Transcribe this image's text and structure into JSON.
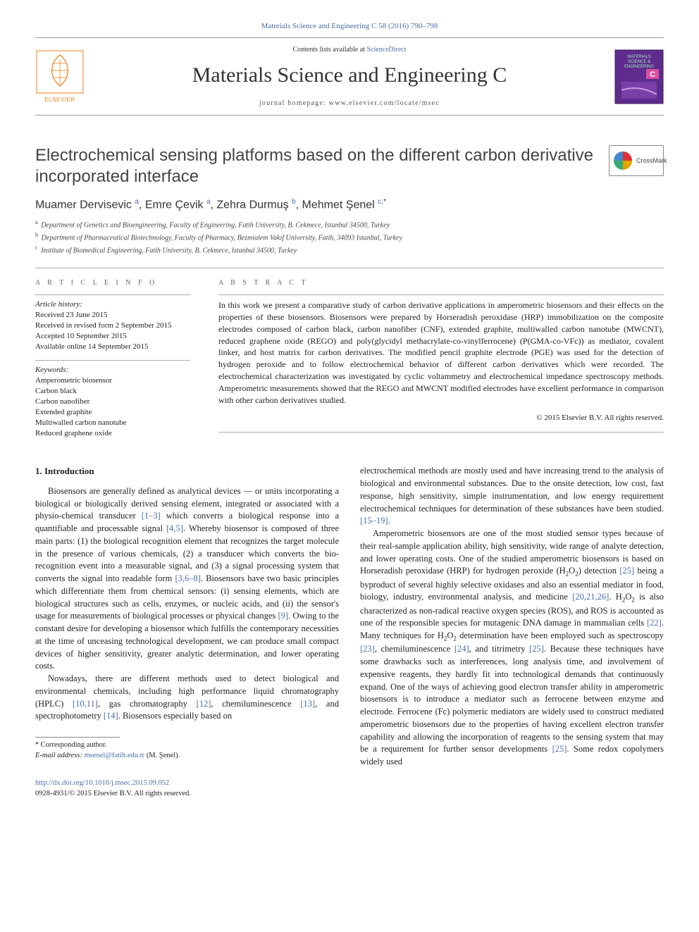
{
  "citation": "Materials Science and Engineering C 58 (2016) 790–798",
  "contents_prefix": "Contents lists available at ",
  "contents_link": "ScienceDirect",
  "journal": "Materials Science and Engineering C",
  "homepage_label": "journal homepage: ",
  "homepage_url": "www.elsevier.com/locate/msec",
  "publisher_name": "ELSEVIER",
  "cover_badge_lines": [
    "MATERIALS",
    "SCIENCE &",
    "ENGINEERING"
  ],
  "cover_badge_letter": "C",
  "title": "Electrochemical sensing platforms based on the different carbon derivative incorporated interface",
  "crossmark_label": "CrossMark",
  "authors_html": "Muamer Dervisevic <sup>a</sup>, Emre Çevik <sup>a</sup>, Zehra Durmuş <sup>b</sup>, Mehmet Şenel <sup>c,</sup><sup class=\"star\">*</sup>",
  "affiliations": [
    {
      "sup": "a",
      "text": "Department of Genetics and Bioengineering, Faculty of Engineering, Fatih University, B. Cekmece, Istanbul 34500, Turkey"
    },
    {
      "sup": "b",
      "text": "Department of Pharmaceutical Biotechnology, Faculty of Pharmacy, Bezmialem Vakıf University, Fatih, 34093 Istanbul, Turkey"
    },
    {
      "sup": "c",
      "text": "Institute of Biomedical Engineering, Fatih University, B. Cekmece, Istanbul 34500, Turkey"
    }
  ],
  "article_info_heading": "A R T I C L E   I N F O",
  "abstract_heading": "A B S T R A C T",
  "history_label": "Article history:",
  "history": [
    "Received 23 June 2015",
    "Received in revised form 2 September 2015",
    "Accepted 10 September 2015",
    "Available online 14 September 2015"
  ],
  "keywords_label": "Keywords:",
  "keywords": [
    "Amperometric biosensor",
    "Carbon black",
    "Carbon nanofiber",
    "Extended graphite",
    "Multiwalled carbon nanotube",
    "Reduced graphene oxide"
  ],
  "abstract": "In this work we present a comparative study of carbon derivative applications in amperometric biosensors and their effects on the properties of these biosensors. Biosensors were prepared by Horseradish peroxidase (HRP) immobilization on the composite electrodes composed of carbon black, carbon nanofiber (CNF), extended graphite, multiwalled carbon nanotube (MWCNT), reduced graphene oxide (REGO) and poly(glycidyl methacrylate-co-vinylferrocene) (P(GMA-co-VFc)) as mediator, covalent linker, and host matrix for carbon derivatives. The modified pencil graphite electrode (PGE) was used for the detection of hydrogen peroxide and to follow electrochemical behavior of different carbon derivatives which were recorded. The electrochemical characterization was investigated by cyclic voltammetry and electrochemical impedance spectroscopy methods. Amperometric measurements showed that the REGO and MWCNT modified electrodes have excellent performance in comparison with other carbon derivatives studied.",
  "copyright": "© 2015 Elsevier B.V. All rights reserved.",
  "section1_head": "1. Introduction",
  "col1_p1": "Biosensors are generally defined as analytical devices — or units incorporating a biological or biologically derived sensing element, integrated or associated with a physio-chemical transducer <span class=\"ref\">[1–3]</span> which converts a biological response into a quantifiable and processable signal <span class=\"ref\">[4,5]</span>. Whereby biosensor is composed of three main parts: (1) the biological recognition element that recognizes the target molecule in the presence of various chemicals, (2) a transducer which converts the bio-recognition event into a measurable signal, and (3) a signal processing system that converts the signal into readable form <span class=\"ref\">[3,6–8]</span>. Biosensors have two basic principles which differentiate them from chemical sensors: (i) sensing elements, which are biological structures such as cells, enzymes, or nucleic acids, and (ii) the sensor's usage for measurements of biological processes or physical changes <span class=\"ref\">[9]</span>. Owing to the constant desire for developing a biosensor which fulfills the contemporary necessities at the time of unceasing technological development, we can produce small compact devices of higher sensitivity, greater analytic determination, and lower operating costs.",
  "col1_p2": "Nowadays, there are different methods used to detect biological and environmental chemicals, including high performance liquid chromatography (HPLC) <span class=\"ref\">[10,11]</span>, gas chromatography <span class=\"ref\">[12]</span>, chemiluminescence <span class=\"ref\">[13]</span>, and spectrophotometry <span class=\"ref\">[14]</span>. Biosensors especially based on",
  "col2_p1": "electrochemical methods are mostly used and have increasing trend to the analysis of biological and environmental substances. Due to the onsite detection, low cost, fast response, high sensitivity, simple instrumentation, and low energy requirement electrochemical techniques for determination of these substances have been studied. <span class=\"ref\">[15–19]</span>.",
  "col2_p2": "Amperometric biosensors are one of the most studied sensor types because of their real-sample application ability, high sensitivity, wide range of analyte detection, and lower operating costs. One of the studied amperometric biosensors is based on Horseradish peroxidase (HRP) for hydrogen peroxide (H<span class=\"sub2\">2</span>O<span class=\"sub2\">2</span>) detection <span class=\"ref\">[25]</span> being a byproduct of several highly selective oxidases and also an essential mediator in food, biology, industry, environmental analysis, and medicine <span class=\"ref\">[20,21,26]</span>. H<span class=\"sub2\">2</span>O<span class=\"sub2\">2</span> is also characterized as non-radical reactive oxygen species (ROS), and ROS is accounted as one of the responsible species for mutagenic DNA damage in mammalian cells <span class=\"ref\">[22]</span>. Many techniques for H<span class=\"sub2\">2</span>O<span class=\"sub2\">2</span> determination have been employed such as spectroscopy <span class=\"ref\">[23]</span>, chemiluminescence <span class=\"ref\">[24]</span>, and titrimetry <span class=\"ref\">[25]</span>. Because these techniques have some drawbacks such as interferences, long analysis time, and involvement of expensive reagents, they hardly fit into technological demands that continuously expand. One of the ways of achieving good electron transfer ability in amperometric biosensors is to introduce a mediator such as ferrocene between enzyme and electrode. Ferrocene (Fc) polymeric mediators are widely used to construct mediated amperometric biosensors due to the properties of having excellent electron transfer capability and allowing the incorporation of reagents to the sensing system that may be a requirement for further sensor developments <span class=\"ref\">[25]</span>. Some redox copolymers widely used",
  "footnote_label": "* Corresponding author.",
  "footnote_email_label": "E-mail address: ",
  "footnote_email": "msenel@fatih.edu.tr",
  "footnote_email_who": " (M. Şenel).",
  "doi_url": "http://dx.doi.org/10.1016/j.msec.2015.09.052",
  "issn_line": "0928-4931/© 2015 Elsevier B.V. All rights reserved.",
  "colors": {
    "link": "#4a6ea8",
    "text": "#222222",
    "rule": "#aaaaaa",
    "elsevier_orange": "#ef7f1a",
    "cover_purple": "#5f2b8c",
    "cover_text": "#9fe6c1"
  }
}
